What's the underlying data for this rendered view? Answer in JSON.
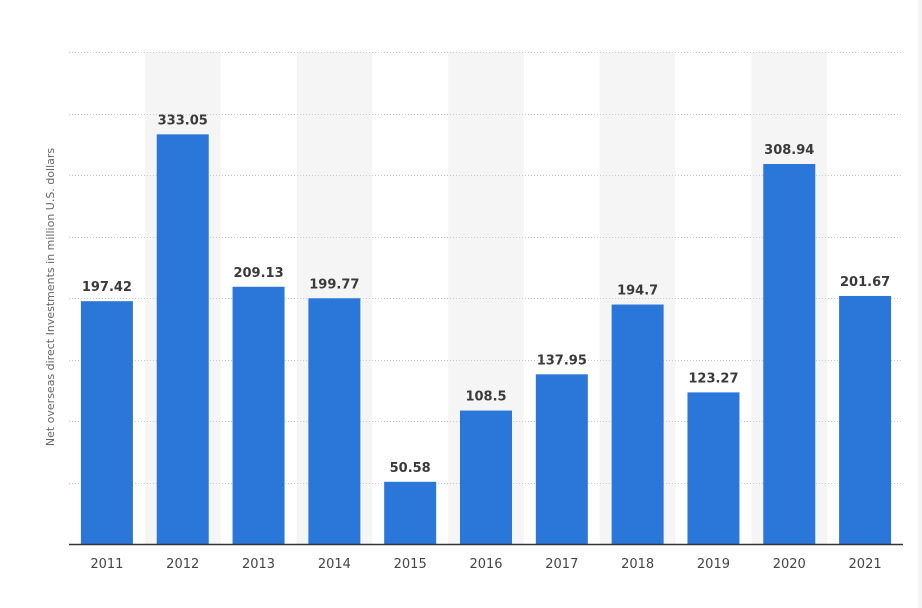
{
  "chart_data": {
    "type": "bar",
    "categories": [
      "2011",
      "2012",
      "2013",
      "2014",
      "2015",
      "2016",
      "2017",
      "2018",
      "2019",
      "2020",
      "2021"
    ],
    "values": [
      197.42,
      333.05,
      209.13,
      199.77,
      50.58,
      108.5,
      137.95,
      194.7,
      123.27,
      308.94,
      201.67
    ],
    "value_labels": [
      "197.42",
      "333.05",
      "209.13",
      "199.77",
      "50.58",
      "108.5",
      "137.95",
      "194.7",
      "123.27",
      "308.94",
      "201.67"
    ],
    "title": "",
    "xlabel": "",
    "ylabel": "Net overseas direct Investments in million U.S. dollars",
    "ylim": [
      0,
      400
    ],
    "grid": true,
    "y_tick_labels_shown": false,
    "colors": {
      "bar": "#2b76d9",
      "alternate_band": "#f5f5f5",
      "grid": "#c8c8c8"
    }
  }
}
